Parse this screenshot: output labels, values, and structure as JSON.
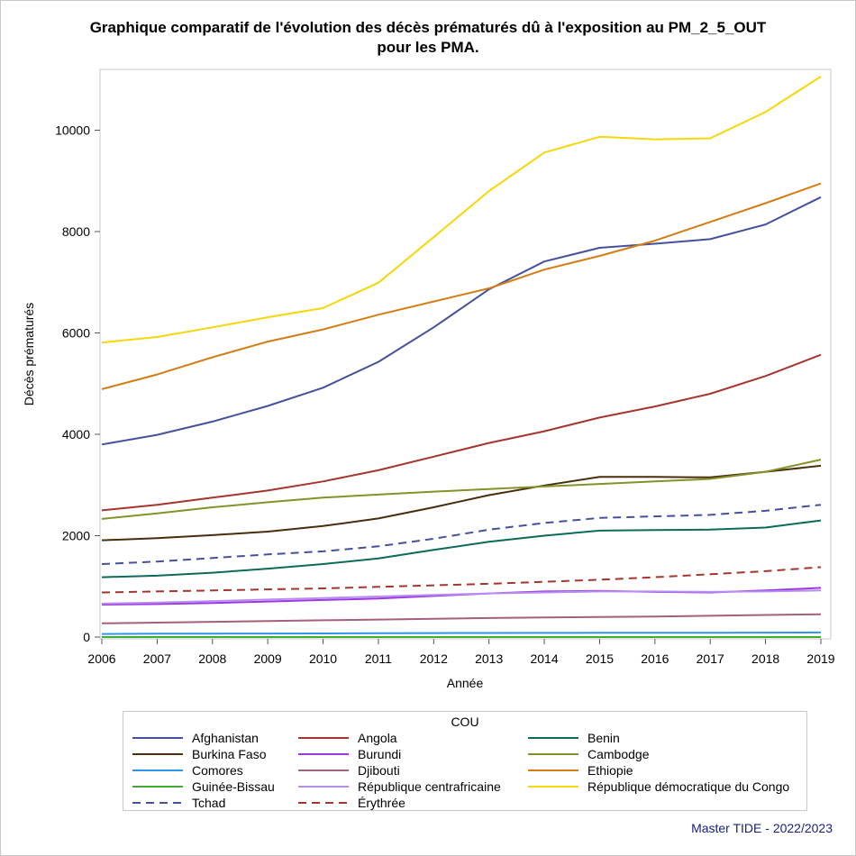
{
  "chart_data": {
    "type": "line",
    "title": "Graphique comparatif de l'évolution des décès prématurés dû à l'exposition au PM_2_5_OUT",
    "subtitle": "pour les PMA.",
    "xlabel": "Année",
    "ylabel": "Décès prématurés",
    "xlim": [
      2006,
      2019
    ],
    "ylim": [
      0,
      11200
    ],
    "x_ticks": [
      2006,
      2007,
      2008,
      2009,
      2010,
      2011,
      2012,
      2013,
      2014,
      2015,
      2016,
      2017,
      2018,
      2019
    ],
    "y_ticks": [
      0,
      2000,
      4000,
      6000,
      8000,
      10000
    ],
    "grid": false,
    "legend_title": "COU",
    "legend_position": "bottom",
    "x": [
      2006,
      2007,
      2008,
      2009,
      2010,
      2011,
      2012,
      2013,
      2014,
      2015,
      2016,
      2017,
      2018,
      2019
    ],
    "series": [
      {
        "name": "Afghanistan",
        "color": "#46509b",
        "dash": "solid",
        "values": [
          3800,
          3990,
          4250,
          4560,
          4920,
          5430,
          6110,
          6860,
          7410,
          7680,
          7760,
          7850,
          8140,
          8680
        ]
      },
      {
        "name": "Angola",
        "color": "#a5352d",
        "dash": "solid",
        "values": [
          2500,
          2610,
          2750,
          2890,
          3070,
          3290,
          3560,
          3830,
          4060,
          4330,
          4550,
          4800,
          5150,
          5570
        ]
      },
      {
        "name": "Benin",
        "color": "#0a6b5a",
        "dash": "solid",
        "values": [
          1180,
          1210,
          1270,
          1350,
          1440,
          1550,
          1720,
          1880,
          2000,
          2100,
          2110,
          2120,
          2160,
          2300
        ]
      },
      {
        "name": "Burkina Faso",
        "color": "#4a2d0a",
        "dash": "solid",
        "values": [
          1910,
          1950,
          2010,
          2080,
          2190,
          2340,
          2560,
          2800,
          2990,
          3160,
          3160,
          3150,
          3260,
          3380
        ]
      },
      {
        "name": "Burundi",
        "color": "#9d37e3",
        "dash": "solid",
        "values": [
          640,
          650,
          670,
          700,
          730,
          760,
          810,
          860,
          900,
          910,
          890,
          880,
          920,
          970
        ]
      },
      {
        "name": "Cambodge",
        "color": "#849227",
        "dash": "solid",
        "values": [
          2330,
          2440,
          2560,
          2660,
          2750,
          2810,
          2870,
          2920,
          2970,
          3020,
          3070,
          3120,
          3260,
          3500
        ]
      },
      {
        "name": "Comores",
        "color": "#2e95ec",
        "dash": "solid",
        "values": [
          60,
          65,
          67,
          70,
          72,
          75,
          78,
          80,
          82,
          83,
          84,
          85,
          87,
          90
        ]
      },
      {
        "name": "Djibouti",
        "color": "#a5607d",
        "dash": "solid",
        "values": [
          270,
          285,
          300,
          315,
          330,
          345,
          360,
          375,
          385,
          395,
          405,
          420,
          435,
          450
        ]
      },
      {
        "name": "Ethiopie",
        "color": "#d37d13",
        "dash": "solid",
        "values": [
          4890,
          5180,
          5520,
          5830,
          6070,
          6360,
          6620,
          6880,
          7250,
          7520,
          7820,
          8190,
          8560,
          8950
        ]
      },
      {
        "name": "Guinée-Bissau",
        "color": "#3cb02a",
        "dash": "solid",
        "values": [
          0,
          0,
          0,
          0,
          0,
          0,
          0,
          0,
          0,
          0,
          0,
          0,
          0,
          0
        ]
      },
      {
        "name": "République centrafricaine",
        "color": "#b88df0",
        "dash": "solid",
        "values": [
          660,
          680,
          710,
          740,
          770,
          800,
          830,
          860,
          880,
          900,
          900,
          890,
          900,
          920
        ]
      },
      {
        "name": "République démocratique du Congo",
        "color": "#f5d70a",
        "dash": "solid",
        "values": [
          5810,
          5920,
          6110,
          6310,
          6490,
          6990,
          7890,
          8800,
          9560,
          9870,
          9820,
          9840,
          10360,
          11060
        ]
      },
      {
        "name": "Tchad",
        "color": "#46509b",
        "dash": "dashed",
        "values": [
          1440,
          1490,
          1560,
          1630,
          1690,
          1790,
          1940,
          2120,
          2250,
          2350,
          2380,
          2410,
          2490,
          2610
        ]
      },
      {
        "name": "Érythrée",
        "color": "#a5352d",
        "dash": "dashed",
        "values": [
          880,
          900,
          920,
          940,
          960,
          990,
          1020,
          1050,
          1090,
          1130,
          1180,
          1240,
          1300,
          1380
        ]
      }
    ]
  },
  "footnote": "Master TIDE - 2022/2023"
}
